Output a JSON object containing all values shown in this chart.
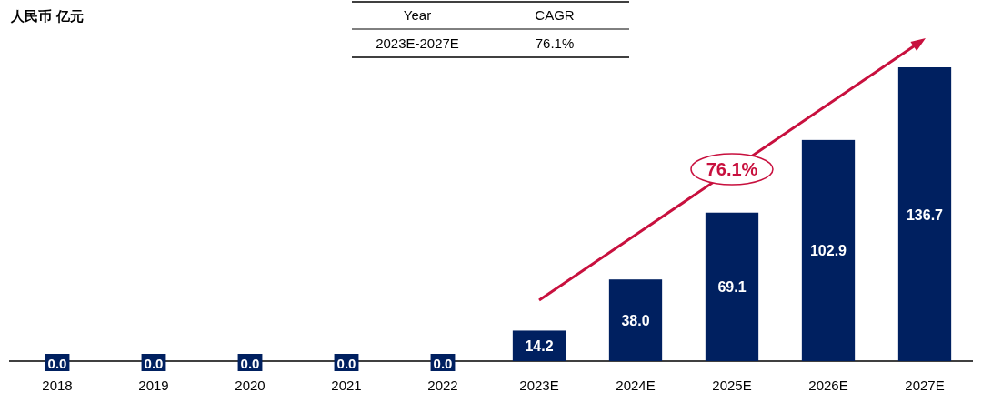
{
  "chart_data": {
    "type": "bar",
    "ylabel": "人民币 亿元",
    "categories": [
      "2018",
      "2019",
      "2020",
      "2021",
      "2022",
      "2023E",
      "2024E",
      "2025E",
      "2026E",
      "2027E"
    ],
    "values": [
      0.0,
      0.0,
      0.0,
      0.0,
      0.0,
      14.2,
      38.0,
      69.1,
      102.9,
      136.7
    ],
    "value_labels": [
      "0.0",
      "0.0",
      "0.0",
      "0.0",
      "0.0",
      "14.2",
      "38.0",
      "69.1",
      "102.9",
      "136.7"
    ],
    "color": "#002060",
    "annotations": [
      "Year",
      "CAGR",
      "2023E-2027E",
      "76.1%",
      "76.1%"
    ]
  }
}
